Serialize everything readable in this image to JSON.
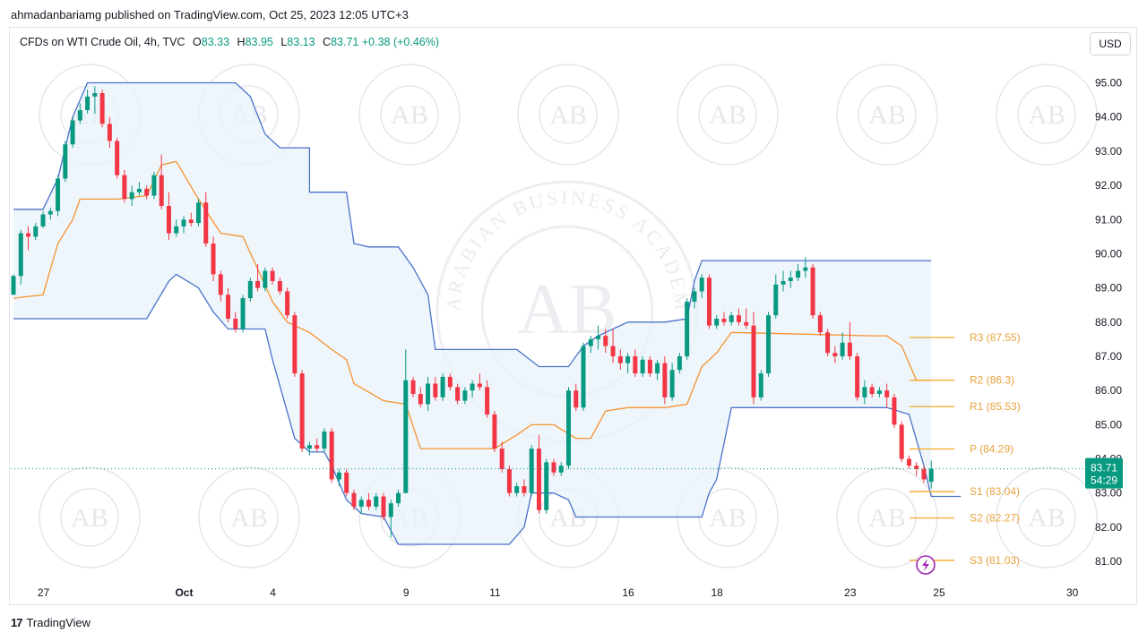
{
  "header": {
    "publisher": "ahmadanbariamg published on TradingView.com, Oct 25, 2023 12:05 UTC+3"
  },
  "legend": {
    "symbol": "CFDs on WTI Crude Oil, 4h, TVC",
    "open_label": "O",
    "open": "83.33",
    "high_label": "H",
    "high": "83.95",
    "low_label": "L",
    "low": "83.13",
    "close_label": "C",
    "close": "83.71",
    "change": "+0.38 (+0.46%)"
  },
  "currency_button": "USD",
  "footer": {
    "brand": "TradingView",
    "logo_mark": "17"
  },
  "watermark": {
    "monogram": "AB",
    "ring_text": "ARABIAN BUSINESS ACADEMY"
  },
  "colors": {
    "up": "#089981",
    "down": "#f23645",
    "band_line": "#4a72c9",
    "band_fill": "#e8f3fb",
    "baseline": "#f5922f",
    "pivot": "#f5a623",
    "current_price_bg": "#089981",
    "dotted": "#089981"
  },
  "chart_data": {
    "type": "candlestick",
    "timeframe": "4h",
    "y_axis": {
      "range": [
        80.4,
        95.8
      ],
      "ticks": [
        "81.00",
        "82.00",
        "83.00",
        "84.00",
        "85.00",
        "86.00",
        "87.00",
        "88.00",
        "89.00",
        "90.00",
        "91.00",
        "92.00",
        "93.00",
        "94.00",
        "95.00"
      ]
    },
    "x_axis": {
      "ticks": [
        {
          "label": "27",
          "index": 2
        },
        {
          "label": "Oct",
          "index": 21
        },
        {
          "label": "4",
          "index": 33
        },
        {
          "label": "9",
          "index": 51
        },
        {
          "label": "11",
          "index": 63
        },
        {
          "label": "16",
          "index": 81
        },
        {
          "label": "18",
          "index": 93
        },
        {
          "label": "23",
          "index": 111
        },
        {
          "label": "25",
          "index": 123
        },
        {
          "label": "30",
          "index": 141
        }
      ],
      "bars_visible": 147
    },
    "candles_ohlc": [
      [
        88.8,
        89.4,
        88.8,
        89.35
      ],
      [
        89.35,
        90.7,
        89.1,
        90.6
      ],
      [
        90.6,
        90.8,
        90.1,
        90.5
      ],
      [
        90.5,
        90.9,
        90.4,
        90.8
      ],
      [
        90.8,
        91.25,
        90.75,
        91.15
      ],
      [
        91.15,
        91.35,
        91.0,
        91.25
      ],
      [
        91.25,
        92.3,
        91.1,
        92.2
      ],
      [
        92.2,
        93.3,
        92.1,
        93.2
      ],
      [
        93.2,
        94.0,
        93.1,
        93.9
      ],
      [
        93.9,
        94.4,
        93.8,
        94.2
      ],
      [
        94.2,
        94.8,
        94.1,
        94.6
      ],
      [
        94.6,
        94.9,
        94.1,
        94.7
      ],
      [
        94.7,
        94.8,
        93.7,
        93.8
      ],
      [
        93.8,
        94.0,
        93.1,
        93.3
      ],
      [
        93.3,
        93.4,
        92.2,
        92.3
      ],
      [
        92.3,
        92.45,
        91.5,
        91.6
      ],
      [
        91.6,
        92.0,
        91.4,
        91.8
      ],
      [
        91.8,
        92.1,
        91.7,
        91.9
      ],
      [
        91.9,
        92.0,
        91.6,
        91.7
      ],
      [
        91.7,
        92.4,
        91.6,
        92.3
      ],
      [
        92.3,
        92.9,
        91.3,
        91.4
      ],
      [
        91.4,
        91.8,
        90.4,
        90.6
      ],
      [
        90.6,
        91.0,
        90.5,
        90.8
      ],
      [
        90.8,
        91.1,
        90.6,
        91.0
      ],
      [
        91.0,
        91.2,
        90.8,
        90.9
      ],
      [
        90.9,
        91.6,
        90.8,
        91.5
      ],
      [
        91.5,
        91.8,
        90.2,
        90.3
      ],
      [
        90.3,
        90.5,
        89.2,
        89.4
      ],
      [
        89.4,
        89.5,
        88.6,
        88.8
      ],
      [
        88.8,
        89.0,
        88.0,
        88.1
      ],
      [
        88.1,
        88.3,
        87.7,
        87.8
      ],
      [
        87.8,
        88.8,
        87.7,
        88.7
      ],
      [
        88.7,
        89.3,
        88.6,
        89.2
      ],
      [
        89.2,
        89.7,
        88.9,
        89.0
      ],
      [
        89.0,
        89.6,
        88.9,
        89.5
      ],
      [
        89.5,
        89.6,
        89.1,
        89.2
      ],
      [
        89.2,
        89.3,
        88.8,
        88.9
      ],
      [
        88.9,
        89.0,
        88.1,
        88.2
      ],
      [
        88.2,
        88.3,
        86.4,
        86.5
      ],
      [
        86.5,
        86.6,
        84.2,
        84.3
      ],
      [
        84.3,
        84.5,
        84.1,
        84.4
      ],
      [
        84.4,
        84.6,
        84.2,
        84.3
      ],
      [
        84.3,
        84.9,
        84.2,
        84.8
      ],
      [
        84.8,
        84.9,
        83.3,
        83.4
      ],
      [
        83.4,
        83.7,
        83.2,
        83.6
      ],
      [
        83.6,
        83.7,
        82.9,
        83.0
      ],
      [
        83.0,
        83.1,
        82.5,
        82.6
      ],
      [
        82.6,
        82.9,
        82.4,
        82.8
      ],
      [
        82.8,
        83.0,
        82.5,
        82.6
      ],
      [
        82.6,
        83.0,
        82.5,
        82.9
      ],
      [
        82.9,
        83.0,
        82.2,
        82.3
      ],
      [
        82.3,
        82.8,
        81.7,
        82.7
      ],
      [
        82.7,
        83.1,
        82.6,
        83.0
      ],
      [
        83.0,
        87.2,
        83.0,
        86.3
      ],
      [
        86.3,
        86.4,
        85.8,
        85.9
      ],
      [
        85.9,
        86.1,
        85.5,
        85.6
      ],
      [
        85.6,
        86.4,
        85.4,
        86.2
      ],
      [
        86.2,
        86.4,
        85.7,
        85.8
      ],
      [
        85.8,
        86.5,
        85.7,
        86.4
      ],
      [
        86.4,
        86.5,
        86.0,
        86.1
      ],
      [
        86.1,
        86.2,
        85.6,
        85.7
      ],
      [
        85.7,
        86.1,
        85.6,
        86.0
      ],
      [
        86.0,
        86.3,
        85.8,
        86.2
      ],
      [
        86.2,
        86.5,
        86.0,
        86.1
      ],
      [
        86.1,
        86.3,
        85.2,
        85.3
      ],
      [
        85.3,
        85.4,
        84.2,
        84.3
      ],
      [
        84.3,
        84.5,
        83.6,
        83.7
      ],
      [
        83.7,
        83.8,
        82.9,
        83.0
      ],
      [
        83.0,
        83.3,
        82.9,
        83.2
      ],
      [
        83.2,
        83.4,
        82.9,
        83.0
      ],
      [
        83.0,
        84.4,
        82.9,
        84.3
      ],
      [
        84.3,
        84.7,
        82.4,
        82.5
      ],
      [
        82.5,
        84.0,
        82.4,
        83.9
      ],
      [
        83.9,
        84.0,
        83.5,
        83.6
      ],
      [
        83.6,
        83.9,
        83.5,
        83.8
      ],
      [
        83.8,
        86.1,
        83.7,
        86.0
      ],
      [
        86.0,
        86.2,
        85.4,
        85.5
      ],
      [
        85.5,
        87.4,
        85.4,
        87.3
      ],
      [
        87.3,
        87.6,
        87.1,
        87.5
      ],
      [
        87.5,
        87.9,
        87.2,
        87.6
      ],
      [
        87.6,
        87.8,
        87.1,
        87.3
      ],
      [
        87.3,
        87.8,
        86.8,
        87.0
      ],
      [
        87.0,
        87.2,
        86.6,
        86.8
      ],
      [
        86.8,
        87.1,
        86.5,
        87.0
      ],
      [
        87.0,
        87.2,
        86.4,
        86.5
      ],
      [
        86.5,
        87.0,
        86.4,
        86.9
      ],
      [
        86.9,
        87.0,
        86.4,
        86.5
      ],
      [
        86.5,
        86.9,
        86.3,
        86.8
      ],
      [
        86.8,
        87.0,
        85.6,
        85.8
      ],
      [
        85.8,
        86.8,
        85.7,
        86.6
      ],
      [
        86.6,
        87.1,
        86.5,
        87.0
      ],
      [
        87.0,
        88.7,
        86.9,
        88.6
      ],
      [
        88.6,
        89.0,
        88.4,
        88.9
      ],
      [
        88.9,
        89.4,
        88.7,
        89.3
      ],
      [
        89.3,
        89.4,
        87.8,
        87.9
      ],
      [
        87.9,
        88.2,
        87.8,
        88.1
      ],
      [
        88.1,
        88.3,
        87.9,
        88.0
      ],
      [
        88.0,
        88.3,
        87.9,
        88.2
      ],
      [
        88.2,
        88.4,
        87.9,
        88.0
      ],
      [
        88.0,
        88.4,
        87.8,
        87.9
      ],
      [
        87.9,
        88.3,
        85.6,
        85.8
      ],
      [
        85.8,
        86.6,
        85.7,
        86.5
      ],
      [
        86.5,
        88.3,
        86.4,
        88.2
      ],
      [
        88.2,
        89.4,
        88.1,
        89.1
      ],
      [
        89.1,
        89.5,
        88.9,
        89.2
      ],
      [
        89.2,
        89.5,
        89.0,
        89.3
      ],
      [
        89.3,
        89.7,
        89.2,
        89.5
      ],
      [
        89.5,
        89.9,
        89.3,
        89.6
      ],
      [
        89.6,
        89.7,
        88.1,
        88.2
      ],
      [
        88.2,
        88.3,
        87.6,
        87.7
      ],
      [
        87.7,
        87.8,
        87.0,
        87.1
      ],
      [
        87.1,
        87.3,
        86.8,
        87.0
      ],
      [
        87.0,
        87.7,
        86.9,
        87.4
      ],
      [
        87.4,
        88.0,
        86.9,
        87.0
      ],
      [
        87.0,
        87.1,
        85.7,
        85.8
      ],
      [
        85.8,
        86.3,
        85.6,
        86.1
      ],
      [
        86.1,
        86.2,
        85.8,
        85.9
      ],
      [
        85.9,
        86.1,
        85.8,
        86.0
      ],
      [
        86.0,
        86.2,
        85.5,
        85.8
      ],
      [
        85.8,
        85.9,
        84.9,
        85.0
      ],
      [
        85.0,
        85.1,
        83.9,
        84.0
      ],
      [
        84.0,
        84.1,
        83.7,
        83.8
      ],
      [
        83.8,
        83.9,
        83.5,
        83.7
      ],
      [
        83.7,
        83.8,
        83.3,
        83.4
      ],
      [
        83.33,
        83.95,
        83.13,
        83.71
      ]
    ],
    "pivot_levels": [
      {
        "name": "R3",
        "value": 87.55,
        "label": "R3 (87.55)"
      },
      {
        "name": "R2",
        "value": 86.3,
        "label": "R2 (86.3)"
      },
      {
        "name": "R1",
        "value": 85.53,
        "label": "R1 (85.53)"
      },
      {
        "name": "P",
        "value": 84.29,
        "label": "P (84.29)"
      },
      {
        "name": "S1",
        "value": 83.04,
        "label": "S1 (83.04)"
      },
      {
        "name": "S2",
        "value": 82.27,
        "label": "S2 (82.27)"
      },
      {
        "name": "S3",
        "value": 81.03,
        "label": "S3 (81.03)"
      }
    ],
    "current_price": {
      "value": 83.71,
      "label": "83.71",
      "countdown": "54:29"
    },
    "donchian_upper": [
      [
        0,
        91.3
      ],
      [
        4,
        91.3
      ],
      [
        6,
        92.2
      ],
      [
        8,
        94.0
      ],
      [
        10,
        95.0
      ],
      [
        30,
        95.0
      ],
      [
        32,
        94.6
      ],
      [
        34,
        93.5
      ],
      [
        36,
        93.1
      ],
      [
        40,
        93.1
      ],
      [
        40,
        91.8
      ],
      [
        45,
        91.8
      ],
      [
        46,
        90.3
      ],
      [
        48,
        90.2
      ],
      [
        52,
        90.2
      ],
      [
        54,
        89.6
      ],
      [
        56,
        88.8
      ],
      [
        57,
        87.2
      ],
      [
        68,
        87.2
      ],
      [
        71,
        86.7
      ],
      [
        75,
        86.7
      ],
      [
        77,
        87.3
      ],
      [
        79,
        87.6
      ],
      [
        83,
        88.0
      ],
      [
        88,
        88.0
      ],
      [
        91,
        88.1
      ],
      [
        92,
        89.2
      ],
      [
        93,
        89.8
      ],
      [
        124,
        89.8
      ]
    ],
    "donchian_lower": [
      [
        0,
        88.1
      ],
      [
        18,
        88.1
      ],
      [
        21,
        89.2
      ],
      [
        22,
        89.4
      ],
      [
        25,
        89.0
      ],
      [
        27,
        88.3
      ],
      [
        29,
        87.8
      ],
      [
        34,
        87.8
      ],
      [
        35,
        86.9
      ],
      [
        38,
        84.6
      ],
      [
        40,
        84.2
      ],
      [
        42,
        84.2
      ],
      [
        43,
        83.8
      ],
      [
        45,
        82.8
      ],
      [
        47,
        82.4
      ],
      [
        50,
        82.3
      ],
      [
        52,
        81.5
      ],
      [
        67,
        81.5
      ],
      [
        69,
        82.0
      ],
      [
        70,
        83.0
      ],
      [
        73,
        83.0
      ],
      [
        75,
        82.8
      ],
      [
        76,
        82.3
      ],
      [
        93,
        82.3
      ],
      [
        94,
        83.0
      ],
      [
        95,
        83.4
      ],
      [
        97,
        85.5
      ],
      [
        118,
        85.5
      ],
      [
        121,
        85.3
      ],
      [
        123,
        83.8
      ],
      [
        124,
        82.9
      ],
      [
        128,
        82.9
      ]
    ],
    "baseline": [
      [
        0,
        88.7
      ],
      [
        4,
        88.8
      ],
      [
        6,
        90.3
      ],
      [
        8,
        91.0
      ],
      [
        9,
        91.6
      ],
      [
        14,
        91.6
      ],
      [
        18,
        91.7
      ],
      [
        20,
        92.6
      ],
      [
        22,
        92.7
      ],
      [
        25,
        91.6
      ],
      [
        28,
        90.6
      ],
      [
        31,
        90.5
      ],
      [
        35,
        88.6
      ],
      [
        37,
        88.0
      ],
      [
        40,
        87.7
      ],
      [
        43,
        87.2
      ],
      [
        45,
        86.9
      ],
      [
        46,
        86.2
      ],
      [
        50,
        85.7
      ],
      [
        53,
        85.6
      ],
      [
        55,
        84.3
      ],
      [
        65,
        84.3
      ],
      [
        68,
        84.7
      ],
      [
        70,
        85.0
      ],
      [
        73,
        85.0
      ],
      [
        76,
        84.6
      ],
      [
        78,
        84.6
      ],
      [
        80,
        85.4
      ],
      [
        83,
        85.5
      ],
      [
        88,
        85.5
      ],
      [
        91,
        85.6
      ],
      [
        93,
        86.7
      ],
      [
        95,
        87.1
      ],
      [
        97,
        87.7
      ],
      [
        116,
        87.6
      ],
      [
        118,
        87.6
      ],
      [
        120,
        87.3
      ],
      [
        122,
        86.3
      ],
      [
        124,
        86.3
      ]
    ]
  }
}
